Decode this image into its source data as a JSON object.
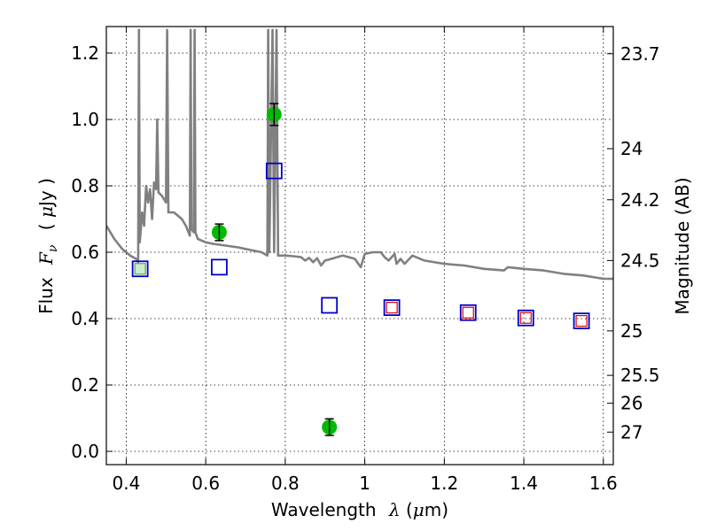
{
  "chart_data": {
    "type": "scatter",
    "xlabel": "Wavelength λ (μm)",
    "xlabel_parts": {
      "text": "Wavelength",
      "symbol": "λ",
      "unit_open": " (",
      "mu": "μ",
      "unit": "m)"
    },
    "ylabel": "Flux Fν ( μJy )",
    "ylabel_parts": {
      "text": "Flux",
      "symbol": "F",
      "sub": "ν",
      "unit_open": "(",
      "mu": "μ",
      "unit": "Jy )"
    },
    "y2label": "Magnitude (AB)",
    "xlim": [
      0.35,
      1.625
    ],
    "ylim": [
      -0.04,
      1.28
    ],
    "grid": true,
    "x_ticks": [
      0.4,
      0.6,
      0.8,
      1.0,
      1.2,
      1.4,
      1.6
    ],
    "x_tick_labels": [
      "0.4",
      "0.6",
      "0.8",
      "1",
      "1.2",
      "1.4",
      "1.6"
    ],
    "y_ticks": [
      0.0,
      0.2,
      0.4,
      0.6,
      0.8,
      1.0,
      1.2
    ],
    "y_tick_labels": [
      "0.0",
      "0.2",
      "0.4",
      "0.6",
      "0.8",
      "1.0",
      "1.2"
    ],
    "y2_ticks": [
      {
        "label": "23.7",
        "flux": 1.198
      },
      {
        "label": "24",
        "flux": 0.912
      },
      {
        "label": "24.2",
        "flux": 0.758
      },
      {
        "label": "24.5",
        "flux": 0.575
      },
      {
        "label": "25",
        "flux": 0.363
      },
      {
        "label": "25.5",
        "flux": 0.229
      },
      {
        "label": "26",
        "flux": 0.145
      },
      {
        "label": "27",
        "flux": 0.058
      }
    ],
    "colors": {
      "spectrum": "#808080",
      "observed": "#00bb00",
      "model_blue": "#0000cc",
      "model_red": "#dd0000",
      "model_green": "#55aa55"
    },
    "series": [
      {
        "type": "line",
        "points": [
          [
            0.35,
            0.68
          ],
          [
            0.37,
            0.64
          ],
          [
            0.39,
            0.61
          ],
          [
            0.41,
            0.59
          ],
          [
            0.425,
            0.58
          ],
          [
            0.43,
            0.57
          ],
          [
            0.432,
            1.27
          ],
          [
            0.434,
            0.63
          ],
          [
            0.44,
            0.72
          ],
          [
            0.445,
            0.68
          ],
          [
            0.45,
            0.8
          ],
          [
            0.455,
            0.75
          ],
          [
            0.46,
            0.79
          ],
          [
            0.465,
            0.7
          ],
          [
            0.47,
            0.81
          ],
          [
            0.475,
            0.79
          ],
          [
            0.478,
            1.0
          ],
          [
            0.481,
            0.78
          ],
          [
            0.49,
            0.77
          ],
          [
            0.5,
            0.75
          ],
          [
            0.503,
            1.27
          ],
          [
            0.506,
            0.72
          ],
          [
            0.52,
            0.72
          ],
          [
            0.53,
            0.71
          ],
          [
            0.54,
            0.7
          ],
          [
            0.55,
            0.68
          ],
          [
            0.56,
            0.65
          ],
          [
            0.562,
            1.27
          ],
          [
            0.564,
            0.67
          ],
          [
            0.57,
            0.66
          ],
          [
            0.572,
            1.27
          ],
          [
            0.574,
            0.66
          ],
          [
            0.58,
            0.64
          ],
          [
            0.6,
            0.63
          ],
          [
            0.62,
            0.625
          ],
          [
            0.65,
            0.62
          ],
          [
            0.68,
            0.615
          ],
          [
            0.7,
            0.61
          ],
          [
            0.72,
            0.605
          ],
          [
            0.74,
            0.6
          ],
          [
            0.755,
            0.59
          ],
          [
            0.757,
            1.27
          ],
          [
            0.76,
            0.6
          ],
          [
            0.768,
            1.27
          ],
          [
            0.772,
            0.6
          ],
          [
            0.778,
            1.27
          ],
          [
            0.782,
            0.59
          ],
          [
            0.8,
            0.59
          ],
          [
            0.82,
            0.588
          ],
          [
            0.84,
            0.585
          ],
          [
            0.85,
            0.575
          ],
          [
            0.86,
            0.583
          ],
          [
            0.87,
            0.57
          ],
          [
            0.88,
            0.582
          ],
          [
            0.89,
            0.56
          ],
          [
            0.9,
            0.575
          ],
          [
            0.91,
            0.578
          ],
          [
            0.93,
            0.585
          ],
          [
            0.945,
            0.59
          ],
          [
            0.96,
            0.585
          ],
          [
            0.975,
            0.58
          ],
          [
            0.99,
            0.555
          ],
          [
            1.0,
            0.595
          ],
          [
            1.02,
            0.6
          ],
          [
            1.04,
            0.6
          ],
          [
            1.05,
            0.585
          ],
          [
            1.06,
            0.575
          ],
          [
            1.075,
            0.595
          ],
          [
            1.08,
            0.565
          ],
          [
            1.09,
            0.58
          ],
          [
            1.1,
            0.565
          ],
          [
            1.12,
            0.59
          ],
          [
            1.15,
            0.575
          ],
          [
            1.2,
            0.565
          ],
          [
            1.25,
            0.56
          ],
          [
            1.3,
            0.55
          ],
          [
            1.35,
            0.545
          ],
          [
            1.36,
            0.555
          ],
          [
            1.4,
            0.55
          ],
          [
            1.45,
            0.545
          ],
          [
            1.5,
            0.535
          ],
          [
            1.55,
            0.53
          ],
          [
            1.6,
            0.52
          ],
          [
            1.625,
            0.52
          ]
        ]
      },
      {
        "type": "scatter_errorbar",
        "points": [
          {
            "x": 0.634,
            "y": 0.66,
            "err": 0.025
          },
          {
            "x": 0.772,
            "y": 1.015,
            "err": 0.033
          },
          {
            "x": 0.911,
            "y": 0.073,
            "err": 0.025
          }
        ]
      },
      {
        "type": "square_markers",
        "points": [
          {
            "x": 0.435,
            "y": 0.55
          },
          {
            "x": 0.634,
            "y": 0.555
          },
          {
            "x": 0.772,
            "y": 0.845
          },
          {
            "x": 0.911,
            "y": 0.44
          },
          {
            "x": 1.068,
            "y": 0.433
          },
          {
            "x": 1.26,
            "y": 0.418
          },
          {
            "x": 1.405,
            "y": 0.402
          },
          {
            "x": 1.545,
            "y": 0.393
          }
        ]
      },
      {
        "type": "square_markers_small",
        "points": [
          {
            "x": 0.435,
            "y": 0.55,
            "color": "green"
          },
          {
            "x": 1.068,
            "y": 0.433,
            "color": "red"
          },
          {
            "x": 1.26,
            "y": 0.418,
            "color": "red"
          },
          {
            "x": 1.405,
            "y": 0.402,
            "color": "red"
          },
          {
            "x": 1.545,
            "y": 0.393,
            "color": "red"
          }
        ]
      }
    ]
  }
}
